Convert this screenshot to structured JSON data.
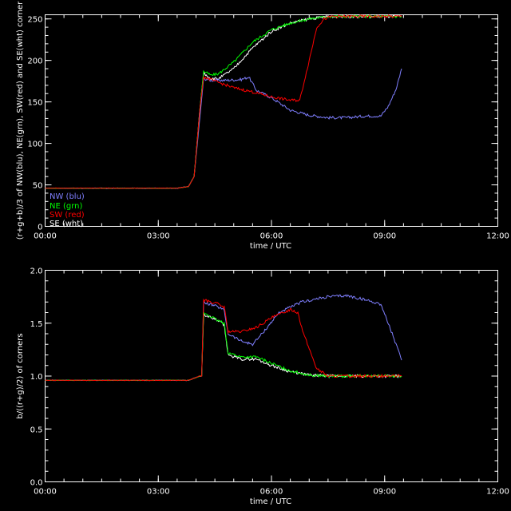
{
  "colors": {
    "background": "#000000",
    "axis": "#ffffff",
    "NW": "#7f7fff",
    "NE": "#00ff00",
    "SW": "#ff0000",
    "SE": "#ffffff"
  },
  "chart_data": [
    {
      "type": "line",
      "xlabel": "time / UTC",
      "ylabel": "(r+g+b)/3 of NW(blu), NE(grn), SW(red) and SE(wht) corner",
      "xlim": [
        0,
        12
      ],
      "ylim": [
        0,
        255
      ],
      "xticks": [
        0,
        3,
        6,
        9,
        12
      ],
      "xtick_labels": [
        "00:00",
        "03:00",
        "06:00",
        "09:00",
        "12:00"
      ],
      "yticks": [
        0,
        50,
        100,
        150,
        200,
        250
      ],
      "ytick_labels": [
        "0",
        "50",
        "100",
        "150",
        "200",
        "250"
      ],
      "legend": {
        "placement": "bottom-left",
        "entries": [
          "NW (blu)",
          "NE (grn)",
          "SW (red)",
          "SE (wht)"
        ]
      },
      "series": [
        {
          "name": "NW (blu)",
          "color": "#7f7fff",
          "x": [
            0,
            3.5,
            3.8,
            3.95,
            4.1,
            4.2,
            4.4,
            4.8,
            5.2,
            5.4,
            5.6,
            6.0,
            6.5,
            7.0,
            7.5,
            8.0,
            8.5,
            8.9,
            9.1,
            9.3,
            9.45
          ],
          "y": [
            46,
            46,
            48,
            60,
            130,
            178,
            176,
            176,
            177,
            180,
            164,
            155,
            140,
            134,
            131,
            131,
            133,
            133,
            145,
            165,
            190
          ]
        },
        {
          "name": "NE (grn)",
          "color": "#00ff00",
          "x": [
            0,
            3.5,
            3.8,
            3.95,
            4.1,
            4.2,
            4.4,
            4.6,
            5.0,
            5.5,
            6.0,
            6.5,
            7.0,
            7.5,
            8.0,
            9.0,
            9.45
          ],
          "y": [
            46,
            46,
            48,
            60,
            140,
            187,
            182,
            184,
            198,
            222,
            237,
            245,
            250,
            253,
            253,
            253,
            253
          ]
        },
        {
          "name": "SW (red)",
          "color": "#ff0000",
          "x": [
            0,
            3.5,
            3.8,
            3.95,
            4.1,
            4.2,
            4.5,
            5.0,
            5.5,
            6.0,
            6.5,
            6.75,
            7.0,
            7.2,
            7.4,
            7.6,
            8.0,
            9.0,
            9.45
          ],
          "y": [
            46,
            46,
            48,
            60,
            140,
            180,
            175,
            167,
            162,
            156,
            152,
            152,
            200,
            240,
            250,
            253,
            253,
            253,
            253
          ]
        },
        {
          "name": "SE (wht)",
          "color": "#ffffff",
          "x": [
            0,
            3.5,
            3.8,
            3.95,
            4.1,
            4.2,
            4.4,
            4.6,
            5.0,
            5.5,
            6.0,
            6.5,
            7.0,
            7.5,
            8.0,
            9.0,
            9.45
          ],
          "y": [
            46,
            46,
            48,
            60,
            140,
            185,
            178,
            178,
            190,
            215,
            235,
            245,
            250,
            253,
            253,
            253,
            253
          ]
        }
      ]
    },
    {
      "type": "line",
      "xlabel": "time / UTC",
      "ylabel": "b/((r+g)/2) of corners",
      "xlim": [
        0,
        12
      ],
      "ylim": [
        0,
        2
      ],
      "xticks": [
        0,
        3,
        6,
        9,
        12
      ],
      "xtick_labels": [
        "00:00",
        "03:00",
        "06:00",
        "09:00",
        "12:00"
      ],
      "yticks": [
        0,
        0.5,
        1,
        1.5,
        2
      ],
      "ytick_labels": [
        "0.0",
        "0.5",
        "1.0",
        "1.5",
        "2.0"
      ],
      "series": [
        {
          "name": "NW (blu)",
          "color": "#7f7fff",
          "x": [
            0,
            3.8,
            4.1,
            4.15,
            4.2,
            4.6,
            4.75,
            4.85,
            5.2,
            5.5,
            5.75,
            6.2,
            6.8,
            7.5,
            8.0,
            8.5,
            8.9,
            9.2,
            9.45
          ],
          "y": [
            0.96,
            0.96,
            1.0,
            1.0,
            1.7,
            1.65,
            1.62,
            1.4,
            1.33,
            1.3,
            1.4,
            1.6,
            1.7,
            1.75,
            1.76,
            1.72,
            1.68,
            1.4,
            1.15
          ]
        },
        {
          "name": "NE (grn)",
          "color": "#00ff00",
          "x": [
            0,
            3.8,
            4.1,
            4.15,
            4.2,
            4.6,
            4.75,
            4.85,
            5.2,
            5.6,
            6.0,
            6.5,
            7.0,
            7.5,
            8.0,
            9.45
          ],
          "y": [
            0.96,
            0.96,
            1.0,
            1.0,
            1.6,
            1.52,
            1.5,
            1.22,
            1.18,
            1.18,
            1.12,
            1.05,
            1.01,
            1.0,
            1.0,
            1.0
          ]
        },
        {
          "name": "SW (red)",
          "color": "#ff0000",
          "x": [
            0,
            3.8,
            4.1,
            4.15,
            4.2,
            4.6,
            4.75,
            4.85,
            5.2,
            5.6,
            6.0,
            6.5,
            6.7,
            6.85,
            7.2,
            7.5,
            8.0,
            9.45
          ],
          "y": [
            0.96,
            0.96,
            1.0,
            1.0,
            1.72,
            1.68,
            1.65,
            1.42,
            1.42,
            1.46,
            1.55,
            1.63,
            1.6,
            1.4,
            1.07,
            1.0,
            1.0,
            1.0
          ]
        },
        {
          "name": "SE (wht)",
          "color": "#ffffff",
          "x": [
            0,
            3.8,
            4.1,
            4.15,
            4.2,
            4.6,
            4.75,
            4.85,
            5.2,
            5.6,
            6.0,
            6.5,
            7.0,
            7.5,
            8.0,
            9.45
          ],
          "y": [
            0.96,
            0.96,
            1.0,
            1.0,
            1.58,
            1.52,
            1.48,
            1.2,
            1.16,
            1.16,
            1.1,
            1.04,
            1.01,
            1.0,
            1.0,
            1.0
          ]
        }
      ]
    }
  ]
}
